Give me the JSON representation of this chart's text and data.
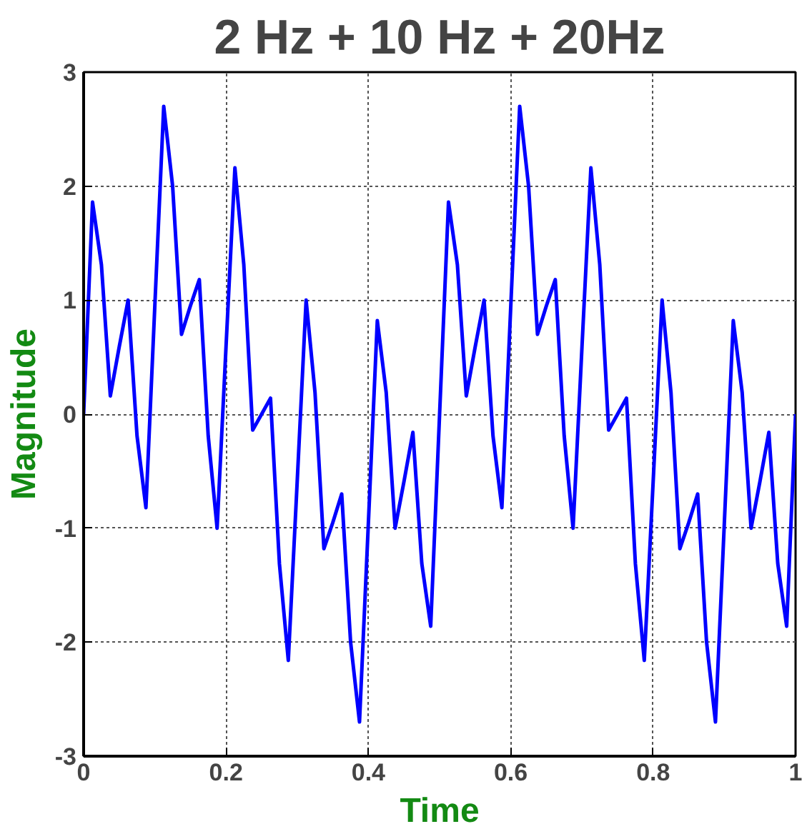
{
  "chart_data": {
    "type": "line",
    "title": "2 Hz + 10 Hz + 20Hz",
    "xlabel": "Time",
    "ylabel": "Magnitude",
    "x": [
      0,
      0.0125,
      0.025,
      0.0375,
      0.05,
      0.0625,
      0.075,
      0.0875,
      0.1,
      0.1125,
      0.125,
      0.1375,
      0.15,
      0.1625,
      0.175,
      0.1875,
      0.2,
      0.2125,
      0.225,
      0.2375,
      0.25,
      0.2625,
      0.275,
      0.2875,
      0.3,
      0.3125,
      0.325,
      0.3375,
      0.35,
      0.3625,
      0.375,
      0.3875,
      0.4,
      0.4125,
      0.425,
      0.4375,
      0.45,
      0.4625,
      0.475,
      0.4875,
      0.5,
      0.5125,
      0.525,
      0.5375,
      0.55,
      0.5625,
      0.575,
      0.5875,
      0.6,
      0.6125,
      0.625,
      0.6375,
      0.65,
      0.6625,
      0.675,
      0.6875,
      0.7,
      0.7125,
      0.725,
      0.7375,
      0.75,
      0.7625,
      0.775,
      0.7875,
      0.8,
      0.8125,
      0.825,
      0.8375,
      0.85,
      0.8625,
      0.875,
      0.8875,
      0.9,
      0.9125,
      0.925,
      0.9375,
      0.95,
      0.9625,
      0.975,
      0.9875,
      1
    ],
    "series": [
      {
        "color": "#0000ff",
        "values": [
          0,
          1.86,
          1.31,
          0.16,
          0.59,
          1.0,
          -0.19,
          -0.82,
          0.95,
          2.7,
          2.0,
          0.7,
          0.95,
          1.18,
          -0.19,
          -1.0,
          0.59,
          2.16,
          1.31,
          -0.14,
          0,
          0.14,
          -1.31,
          -2.16,
          -0.59,
          1.0,
          0.19,
          -1.18,
          -0.95,
          -0.7,
          -2.0,
          -2.7,
          -0.95,
          0.82,
          0.19,
          -1.0,
          -0.59,
          -0.16,
          -1.31,
          -1.86,
          0,
          1.86,
          1.31,
          0.16,
          0.59,
          1.0,
          -0.19,
          -0.82,
          0.95,
          2.7,
          2.0,
          0.7,
          0.95,
          1.18,
          -0.19,
          -1.0,
          0.59,
          2.16,
          1.31,
          -0.14,
          0,
          0.14,
          -1.31,
          -2.16,
          -0.59,
          1.0,
          0.19,
          -1.18,
          -0.95,
          -0.7,
          -2.0,
          -2.7,
          -0.95,
          0.82,
          0.19,
          -1.0,
          -0.59,
          -0.16,
          -1.31,
          -1.86,
          0
        ]
      }
    ],
    "xlim": [
      0,
      1
    ],
    "ylim": [
      -3,
      3
    ],
    "xticks": [
      0,
      {
        "value": 0.2,
        "label": "0.2"
      },
      {
        "value": 0.4,
        "label": "0.4"
      },
      {
        "value": 0.6,
        "label": "0.6"
      },
      {
        "value": 0.8,
        "label": "0.8"
      },
      1
    ],
    "yticks": [
      -3,
      -2,
      -1,
      0,
      1,
      2,
      3
    ],
    "grid": true,
    "marker": "none",
    "line_style": "solid"
  }
}
